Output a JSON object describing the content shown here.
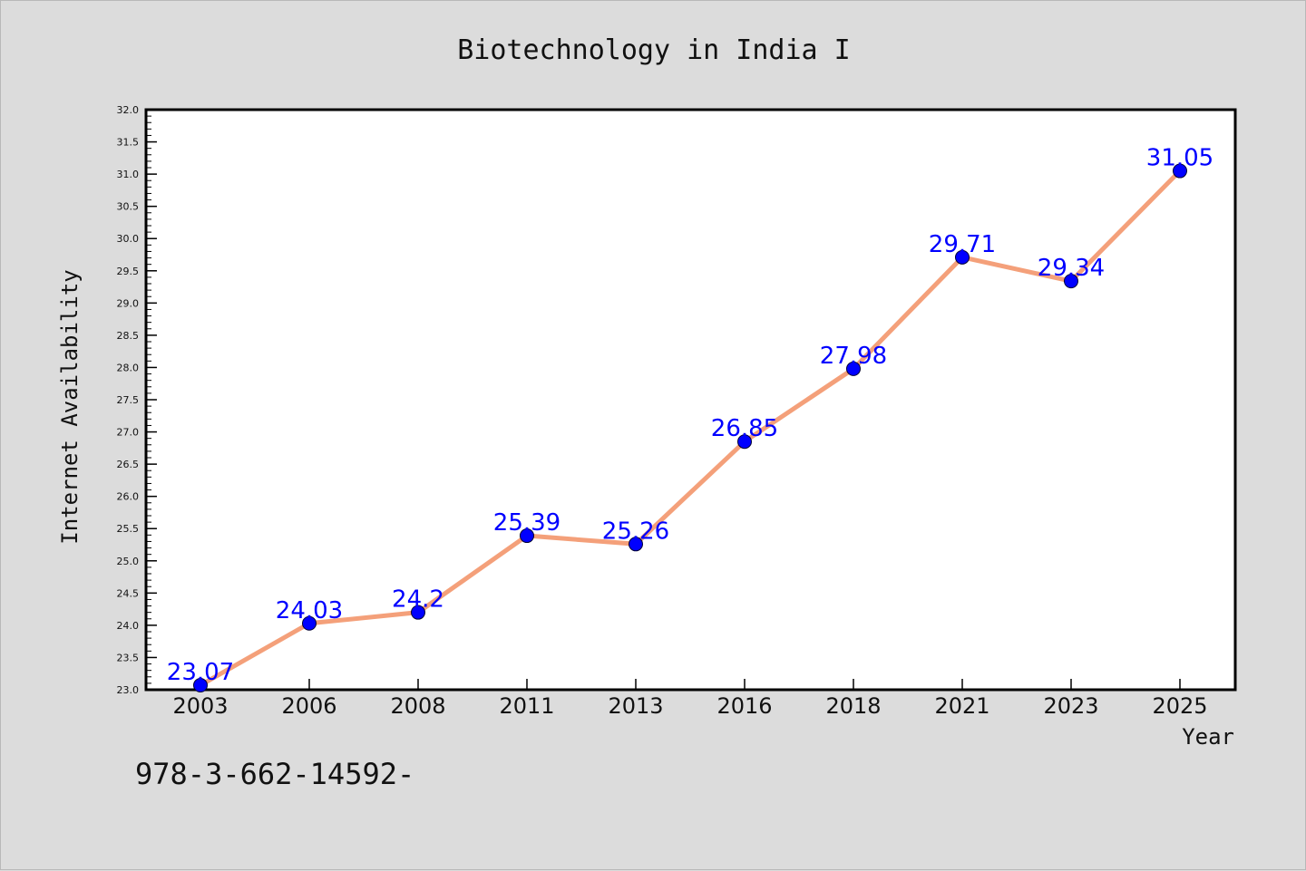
{
  "chart_data": {
    "type": "line",
    "title": "Biotechnology in India I",
    "xlabel": "Year",
    "ylabel": "Internet Availability",
    "categories": [
      "2003",
      "2006",
      "2008",
      "2011",
      "2013",
      "2016",
      "2018",
      "2021",
      "2023",
      "2025"
    ],
    "values": [
      23.07,
      24.03,
      24.2,
      25.39,
      25.26,
      26.85,
      27.98,
      29.71,
      29.34,
      31.05
    ],
    "data_labels": [
      "23.07",
      "24.03",
      "24.2",
      "25.39",
      "25.26",
      "26.85",
      "27.98",
      "29.71",
      "29.34",
      "31.05"
    ],
    "ylim": [
      23.0,
      32.0
    ],
    "y_major_ticks": [
      "23.0",
      "23.5",
      "24.0",
      "24.5",
      "25.0",
      "25.5",
      "26.0",
      "26.5",
      "27.0",
      "27.5",
      "28.0",
      "28.5",
      "29.0",
      "29.5",
      "30.0",
      "30.5",
      "31.0",
      "31.5",
      "32.0"
    ],
    "grid": false,
    "legend": "none",
    "colors": {
      "line": "#f4a07a",
      "marker": "#0000ff",
      "data_label": "#0000ff",
      "background": "#dcdcdc",
      "plot_background": "#ffffff"
    }
  },
  "footer_text": "978-3-662-14592-"
}
